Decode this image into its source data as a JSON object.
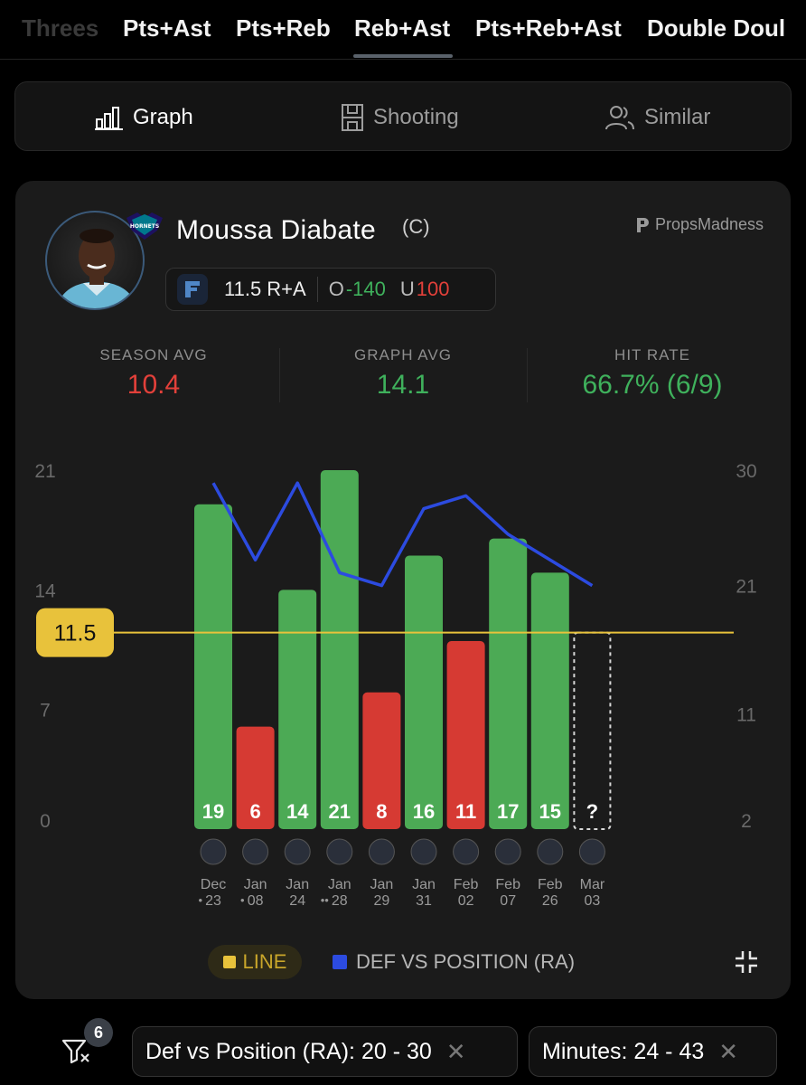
{
  "tabs": [
    {
      "label": "Threes",
      "state": "faded"
    },
    {
      "label": "Pts+Ast",
      "state": "normal"
    },
    {
      "label": "Pts+Reb",
      "state": "normal"
    },
    {
      "label": "Reb+Ast",
      "state": "selected"
    },
    {
      "label": "Pts+Reb+Ast",
      "state": "normal"
    },
    {
      "label": "Double Doul",
      "state": "normal"
    }
  ],
  "subtabs": [
    {
      "label": "Graph",
      "icon": "bar-chart-icon",
      "active": true
    },
    {
      "label": "Shooting",
      "icon": "court-icon",
      "active": false
    },
    {
      "label": "Similar",
      "icon": "users-icon",
      "active": false
    }
  ],
  "player": {
    "name": "Moussa Diabate",
    "position": "(C)",
    "team_logo_text": "HORNETS",
    "avatar": "player-avatar"
  },
  "brand": "PropsMadness",
  "prop": {
    "line": "11.5 R+A",
    "over_label": "O",
    "over_odds": "-140",
    "under_label": "U",
    "under_odds": "100"
  },
  "stats": {
    "season_avg": {
      "label": "SEASON AVG",
      "value": "10.4"
    },
    "graph_avg": {
      "label": "GRAPH AVG",
      "value": "14.1"
    },
    "hit_rate": {
      "label": "HIT RATE",
      "value": "66.7% (6/9)"
    }
  },
  "colors": {
    "green": "#4caa55",
    "red": "#d63a33",
    "line": "#e8c23b",
    "def_line": "#2c4be0",
    "stat_green": "#3fb15c",
    "stat_red": "#e2403a"
  },
  "chart_data": {
    "type": "bar",
    "line_value": 11.5,
    "line_label": "11.5",
    "y_left": {
      "min": 0,
      "max": 21,
      "ticks": [
        "0",
        "7",
        "14",
        "21"
      ]
    },
    "y_right": {
      "min": 2,
      "max": 30,
      "ticks": [
        "2",
        "11",
        "21",
        "30"
      ]
    },
    "games": [
      {
        "value": 19,
        "label": "19",
        "month": "Dec",
        "day": "23",
        "marker": "•",
        "opponent": "wizards-logo-icon",
        "def": 29
      },
      {
        "value": 6,
        "label": "6",
        "month": "Jan",
        "day": "08",
        "marker": "•",
        "opponent": "pacers-logo-icon",
        "def": 23
      },
      {
        "value": 14,
        "label": "14",
        "month": "Jan",
        "day": "24",
        "marker": "",
        "opponent": "wizards-logo-icon",
        "def": 29
      },
      {
        "value": 21,
        "label": "21",
        "month": "Jan",
        "day": "28",
        "marker": "••",
        "opponent": "grizzlies-logo-icon",
        "def": 22
      },
      {
        "value": 8,
        "label": "8",
        "month": "Jan",
        "day": "29",
        "marker": "",
        "opponent": "mavericks-logo-icon",
        "def": 21
      },
      {
        "value": 16,
        "label": "16",
        "month": "Jan",
        "day": "31",
        "marker": "",
        "opponent": "spurs-logo-icon",
        "def": 27
      },
      {
        "value": 11,
        "label": "11",
        "month": "Feb",
        "day": "02",
        "marker": "",
        "opponent": "pelicans-logo-icon",
        "def": 28
      },
      {
        "value": 17,
        "label": "17",
        "month": "Feb",
        "day": "07",
        "marker": "",
        "opponent": "hawks-logo-icon",
        "def": 25
      },
      {
        "value": 15,
        "label": "15",
        "month": "Feb",
        "day": "26",
        "marker": "",
        "opponent": "pacers-logo-icon",
        "def": 23
      },
      {
        "value": null,
        "label": "?",
        "month": "Mar",
        "day": "03",
        "marker": "",
        "opponent": "mavericks-logo-icon",
        "def": 21
      }
    ],
    "legend": [
      {
        "name": "LINE",
        "color": "#e8c23b"
      },
      {
        "name": "DEF VS POSITION (RA)",
        "color": "#2c4be0"
      }
    ]
  },
  "filters": {
    "count": "6",
    "chips": [
      {
        "label": "Def vs Position (RA): 20 - 30"
      },
      {
        "label": "Minutes: 24 - 43"
      }
    ],
    "remove_glyph": "✕"
  }
}
